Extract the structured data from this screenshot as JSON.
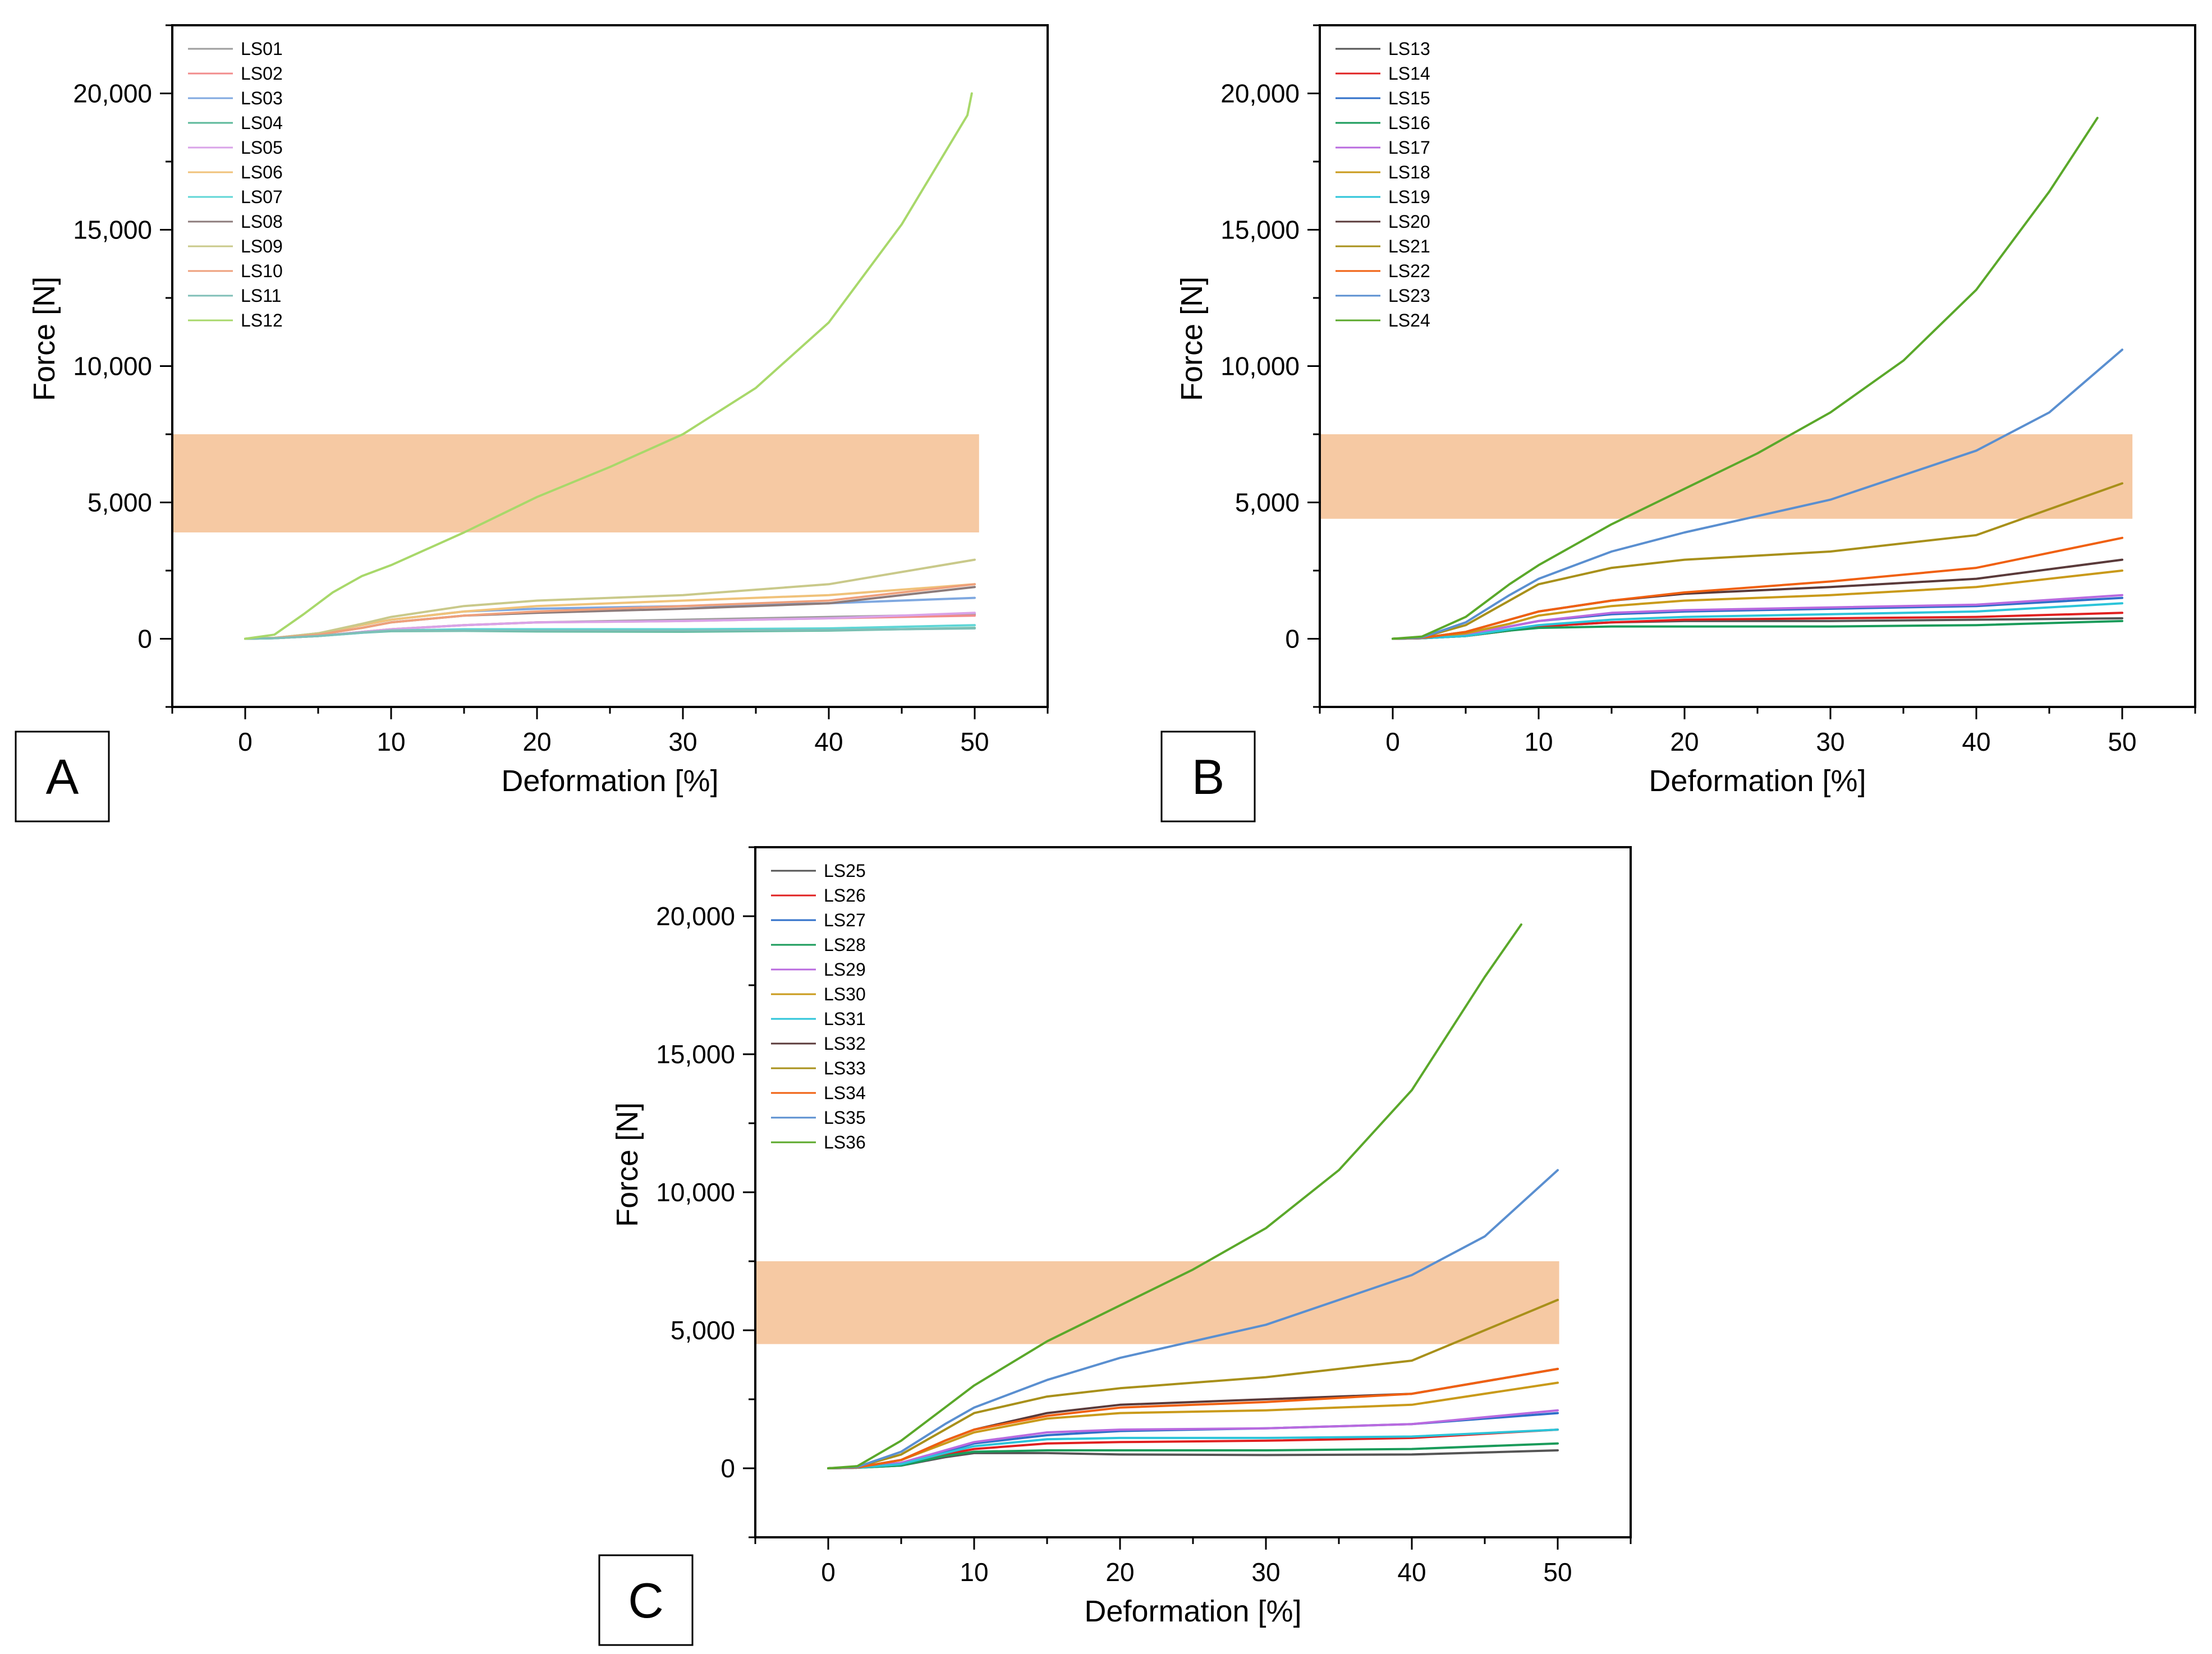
{
  "chart_data": [
    {
      "type": "line",
      "panel_label": "A",
      "xlabel": "Deformation [%]",
      "ylabel": "Force [N]",
      "xlim": [
        -5,
        55
      ],
      "ylim": [
        -2500,
        22500
      ],
      "xticks": [
        0,
        10,
        20,
        30,
        40,
        50
      ],
      "xtick_labels": [
        "0",
        "10",
        "20",
        "30",
        "40",
        "50"
      ],
      "yticks": [
        0,
        5000,
        10000,
        15000,
        20000
      ],
      "ytick_labels": [
        "0",
        "5,000",
        "10,000",
        "15,000",
        "20,000"
      ],
      "legend_position": "top-left",
      "highlight_band": {
        "x": [
          -5,
          50.3
        ],
        "y": [
          3900,
          7500
        ],
        "color": "#f6c9a3"
      },
      "series": [
        {
          "name": "LS01",
          "color": "#9e9e9e",
          "x": [
            0,
            2,
            5,
            8,
            10,
            15,
            20,
            30,
            40,
            50
          ],
          "y": [
            0,
            20,
            100,
            250,
            350,
            500,
            600,
            700,
            800,
            900
          ]
        },
        {
          "name": "LS02",
          "color": "#f28b8b",
          "x": [
            0,
            2,
            5,
            8,
            10,
            15,
            20,
            30,
            40,
            50
          ],
          "y": [
            0,
            20,
            100,
            250,
            350,
            500,
            600,
            650,
            750,
            850
          ]
        },
        {
          "name": "LS03",
          "color": "#7fa8e0",
          "x": [
            0,
            2,
            5,
            8,
            10,
            15,
            20,
            30,
            40,
            50
          ],
          "y": [
            0,
            30,
            200,
            500,
            700,
            1000,
            1100,
            1200,
            1300,
            1500
          ]
        },
        {
          "name": "LS04",
          "color": "#5bb89a",
          "x": [
            0,
            2,
            5,
            8,
            10,
            15,
            20,
            30,
            40,
            50
          ],
          "y": [
            0,
            20,
            100,
            220,
            280,
            290,
            270,
            260,
            300,
            400
          ]
        },
        {
          "name": "LS05",
          "color": "#d9a3e8",
          "x": [
            0,
            2,
            5,
            8,
            10,
            15,
            20,
            30,
            40,
            50
          ],
          "y": [
            0,
            20,
            100,
            250,
            350,
            500,
            600,
            650,
            750,
            950
          ]
        },
        {
          "name": "LS06",
          "color": "#f0c27a",
          "x": [
            0,
            2,
            5,
            8,
            10,
            15,
            20,
            30,
            40,
            50
          ],
          "y": [
            0,
            30,
            200,
            500,
            700,
            1000,
            1200,
            1400,
            1600,
            2000
          ]
        },
        {
          "name": "LS07",
          "color": "#5fd6d6",
          "x": [
            0,
            2,
            5,
            8,
            10,
            15,
            20,
            30,
            40,
            50
          ],
          "y": [
            0,
            20,
            100,
            220,
            300,
            350,
            350,
            350,
            380,
            500
          ]
        },
        {
          "name": "LS08",
          "color": "#8c7b7b",
          "x": [
            0,
            2,
            5,
            8,
            10,
            15,
            20,
            30,
            40,
            50
          ],
          "y": [
            0,
            30,
            150,
            400,
            600,
            850,
            950,
            1100,
            1300,
            1900
          ]
        },
        {
          "name": "LS09",
          "color": "#c9c98a",
          "x": [
            0,
            2,
            5,
            8,
            10,
            15,
            20,
            30,
            40,
            50
          ],
          "y": [
            0,
            30,
            200,
            550,
            800,
            1200,
            1400,
            1600,
            2000,
            2900
          ]
        },
        {
          "name": "LS10",
          "color": "#eea07c",
          "x": [
            0,
            2,
            5,
            8,
            10,
            15,
            20,
            30,
            40,
            50
          ],
          "y": [
            0,
            30,
            150,
            400,
            600,
            850,
            1000,
            1200,
            1400,
            2000
          ]
        },
        {
          "name": "LS11",
          "color": "#7fbfb7",
          "x": [
            0,
            2,
            5,
            8,
            10,
            15,
            20,
            30,
            40,
            50
          ],
          "y": [
            0,
            20,
            100,
            230,
            300,
            300,
            300,
            300,
            320,
            380
          ]
        },
        {
          "name": "LS12",
          "color": "#a8d86a",
          "x": [
            0,
            2,
            4,
            6,
            8,
            10,
            15,
            20,
            25,
            30,
            35,
            40,
            45,
            49.5,
            49.8
          ],
          "y": [
            0,
            150,
            900,
            1700,
            2300,
            2700,
            3900,
            5200,
            6300,
            7500,
            9200,
            11600,
            15200,
            19200,
            20000
          ]
        }
      ]
    },
    {
      "type": "line",
      "panel_label": "B",
      "xlabel": "Deformation [%]",
      "ylabel": "Force [N]",
      "xlim": [
        -5,
        55
      ],
      "ylim": [
        -2500,
        22500
      ],
      "xticks": [
        0,
        10,
        20,
        30,
        40,
        50
      ],
      "xtick_labels": [
        "0",
        "10",
        "20",
        "30",
        "40",
        "50"
      ],
      "yticks": [
        0,
        5000,
        10000,
        15000,
        20000
      ],
      "ytick_labels": [
        "0",
        "5,000",
        "10,000",
        "15,000",
        "20,000"
      ],
      "legend_position": "top-left",
      "highlight_band": {
        "x": [
          -5,
          50.7
        ],
        "y": [
          4400,
          7500
        ],
        "color": "#f6c9a3"
      },
      "series": [
        {
          "name": "LS13",
          "color": "#555555",
          "x": [
            0,
            2,
            5,
            8,
            10,
            15,
            20,
            30,
            40,
            50
          ],
          "y": [
            0,
            20,
            100,
            300,
            450,
            600,
            650,
            650,
            700,
            750
          ]
        },
        {
          "name": "LS14",
          "color": "#e02020",
          "x": [
            0,
            2,
            5,
            8,
            10,
            15,
            20,
            30,
            40,
            50
          ],
          "y": [
            0,
            20,
            100,
            300,
            450,
            600,
            700,
            750,
            800,
            950
          ]
        },
        {
          "name": "LS15",
          "color": "#2f6fc9",
          "x": [
            0,
            2,
            5,
            8,
            10,
            15,
            20,
            30,
            40,
            50
          ],
          "y": [
            0,
            20,
            150,
            450,
            650,
            900,
            1000,
            1100,
            1200,
            1500
          ]
        },
        {
          "name": "LS16",
          "color": "#1a9b5a",
          "x": [
            0,
            2,
            5,
            8,
            10,
            15,
            20,
            30,
            40,
            50
          ],
          "y": [
            0,
            20,
            100,
            300,
            400,
            450,
            450,
            450,
            500,
            650
          ]
        },
        {
          "name": "LS17",
          "color": "#b96adf",
          "x": [
            0,
            2,
            5,
            8,
            10,
            15,
            20,
            30,
            40,
            50
          ],
          "y": [
            0,
            20,
            150,
            450,
            650,
            950,
            1050,
            1150,
            1250,
            1600
          ]
        },
        {
          "name": "LS18",
          "color": "#c99a1a",
          "x": [
            0,
            2,
            5,
            8,
            10,
            15,
            20,
            30,
            40,
            50
          ],
          "y": [
            0,
            30,
            200,
            550,
            850,
            1200,
            1400,
            1600,
            1900,
            2500
          ]
        },
        {
          "name": "LS19",
          "color": "#2cc4d9",
          "x": [
            0,
            2,
            5,
            8,
            10,
            15,
            20,
            30,
            40,
            50
          ],
          "y": [
            0,
            20,
            100,
            350,
            500,
            700,
            800,
            900,
            1000,
            1300
          ]
        },
        {
          "name": "LS20",
          "color": "#5a3a3a",
          "x": [
            0,
            2,
            5,
            8,
            10,
            15,
            20,
            30,
            40,
            50
          ],
          "y": [
            0,
            30,
            250,
            700,
            1000,
            1400,
            1650,
            1900,
            2200,
            2900
          ]
        },
        {
          "name": "LS21",
          "color": "#a8901a",
          "x": [
            0,
            2,
            5,
            8,
            10,
            15,
            20,
            30,
            40,
            50
          ],
          "y": [
            0,
            50,
            500,
            1400,
            2000,
            2600,
            2900,
            3200,
            3800,
            5700
          ]
        },
        {
          "name": "LS22",
          "color": "#f06010",
          "x": [
            0,
            2,
            5,
            8,
            10,
            15,
            20,
            30,
            40,
            50
          ],
          "y": [
            0,
            30,
            250,
            700,
            1000,
            1400,
            1700,
            2100,
            2600,
            3700
          ]
        },
        {
          "name": "LS23",
          "color": "#5a8fd0",
          "x": [
            0,
            2,
            5,
            8,
            10,
            15,
            20,
            30,
            40,
            45,
            50
          ],
          "y": [
            0,
            50,
            600,
            1600,
            2200,
            3200,
            3900,
            5100,
            6900,
            8300,
            10600
          ]
        },
        {
          "name": "LS24",
          "color": "#5aa82a",
          "x": [
            0,
            2,
            5,
            8,
            10,
            15,
            20,
            25,
            30,
            35,
            40,
            45,
            48.3
          ],
          "y": [
            0,
            80,
            800,
            2000,
            2700,
            4200,
            5500,
            6800,
            8300,
            10200,
            12800,
            16400,
            19100
          ]
        }
      ]
    },
    {
      "type": "line",
      "panel_label": "C",
      "xlabel": "Deformation [%]",
      "ylabel": "Force [N]",
      "xlim": [
        -5,
        55
      ],
      "ylim": [
        -2500,
        22500
      ],
      "xticks": [
        0,
        10,
        20,
        30,
        40,
        50
      ],
      "xtick_labels": [
        "0",
        "10",
        "20",
        "30",
        "40",
        "50"
      ],
      "yticks": [
        0,
        5000,
        10000,
        15000,
        20000
      ],
      "ytick_labels": [
        "0",
        "5,000",
        "10,000",
        "15,000",
        "20,000"
      ],
      "legend_position": "top-left",
      "highlight_band": {
        "x": [
          -5,
          50.1
        ],
        "y": [
          4500,
          7500
        ],
        "color": "#f6c9a3"
      },
      "series": [
        {
          "name": "LS25",
          "color": "#555555",
          "x": [
            0,
            2,
            5,
            8,
            10,
            15,
            20,
            30,
            40,
            50
          ],
          "y": [
            0,
            20,
            100,
            400,
            550,
            550,
            500,
            480,
            500,
            650
          ]
        },
        {
          "name": "LS26",
          "color": "#e02020",
          "x": [
            0,
            2,
            5,
            8,
            10,
            15,
            20,
            30,
            40,
            50
          ],
          "y": [
            0,
            20,
            150,
            500,
            700,
            900,
            950,
            1000,
            1100,
            1400
          ]
        },
        {
          "name": "LS27",
          "color": "#2f6fc9",
          "x": [
            0,
            2,
            5,
            8,
            10,
            15,
            20,
            30,
            40,
            50
          ],
          "y": [
            0,
            20,
            200,
            600,
            900,
            1200,
            1350,
            1450,
            1600,
            2000
          ]
        },
        {
          "name": "LS28",
          "color": "#1a9b5a",
          "x": [
            0,
            2,
            5,
            8,
            10,
            15,
            20,
            30,
            40,
            50
          ],
          "y": [
            0,
            20,
            100,
            450,
            600,
            650,
            650,
            650,
            700,
            900
          ]
        },
        {
          "name": "LS29",
          "color": "#b96adf",
          "x": [
            0,
            2,
            5,
            8,
            10,
            15,
            20,
            30,
            40,
            50
          ],
          "y": [
            0,
            20,
            200,
            650,
            950,
            1300,
            1400,
            1450,
            1600,
            2100
          ]
        },
        {
          "name": "LS30",
          "color": "#c99a1a",
          "x": [
            0,
            2,
            5,
            8,
            10,
            15,
            20,
            30,
            40,
            50
          ],
          "y": [
            0,
            30,
            300,
            900,
            1300,
            1800,
            2000,
            2100,
            2300,
            3100
          ]
        },
        {
          "name": "LS31",
          "color": "#2cc4d9",
          "x": [
            0,
            2,
            5,
            8,
            10,
            15,
            20,
            30,
            40,
            50
          ],
          "y": [
            0,
            20,
            150,
            550,
            800,
            1050,
            1100,
            1100,
            1150,
            1400
          ]
        },
        {
          "name": "LS32",
          "color": "#5a3a3a",
          "x": [
            0,
            2,
            5,
            8,
            10,
            15,
            20,
            30,
            40,
            50
          ],
          "y": [
            0,
            30,
            300,
            1000,
            1400,
            2000,
            2300,
            2500,
            2700,
            3600
          ]
        },
        {
          "name": "LS33",
          "color": "#a8901a",
          "x": [
            0,
            2,
            5,
            8,
            10,
            15,
            20,
            30,
            40,
            50
          ],
          "y": [
            0,
            50,
            500,
            1400,
            2000,
            2600,
            2900,
            3300,
            3900,
            6100
          ]
        },
        {
          "name": "LS34",
          "color": "#f06010",
          "x": [
            0,
            2,
            5,
            8,
            10,
            15,
            20,
            30,
            40,
            50
          ],
          "y": [
            0,
            30,
            300,
            1000,
            1400,
            1900,
            2200,
            2400,
            2700,
            3600
          ]
        },
        {
          "name": "LS35",
          "color": "#5a8fd0",
          "x": [
            0,
            2,
            5,
            8,
            10,
            15,
            20,
            30,
            40,
            45,
            50
          ],
          "y": [
            0,
            50,
            600,
            1600,
            2200,
            3200,
            4000,
            5200,
            7000,
            8400,
            10800
          ]
        },
        {
          "name": "LS36",
          "color": "#5aa82a",
          "x": [
            0,
            2,
            5,
            8,
            10,
            15,
            20,
            25,
            30,
            35,
            40,
            45,
            47.5
          ],
          "y": [
            0,
            80,
            1000,
            2200,
            3000,
            4600,
            5900,
            7200,
            8700,
            10800,
            13700,
            17800,
            19700
          ]
        }
      ]
    }
  ]
}
